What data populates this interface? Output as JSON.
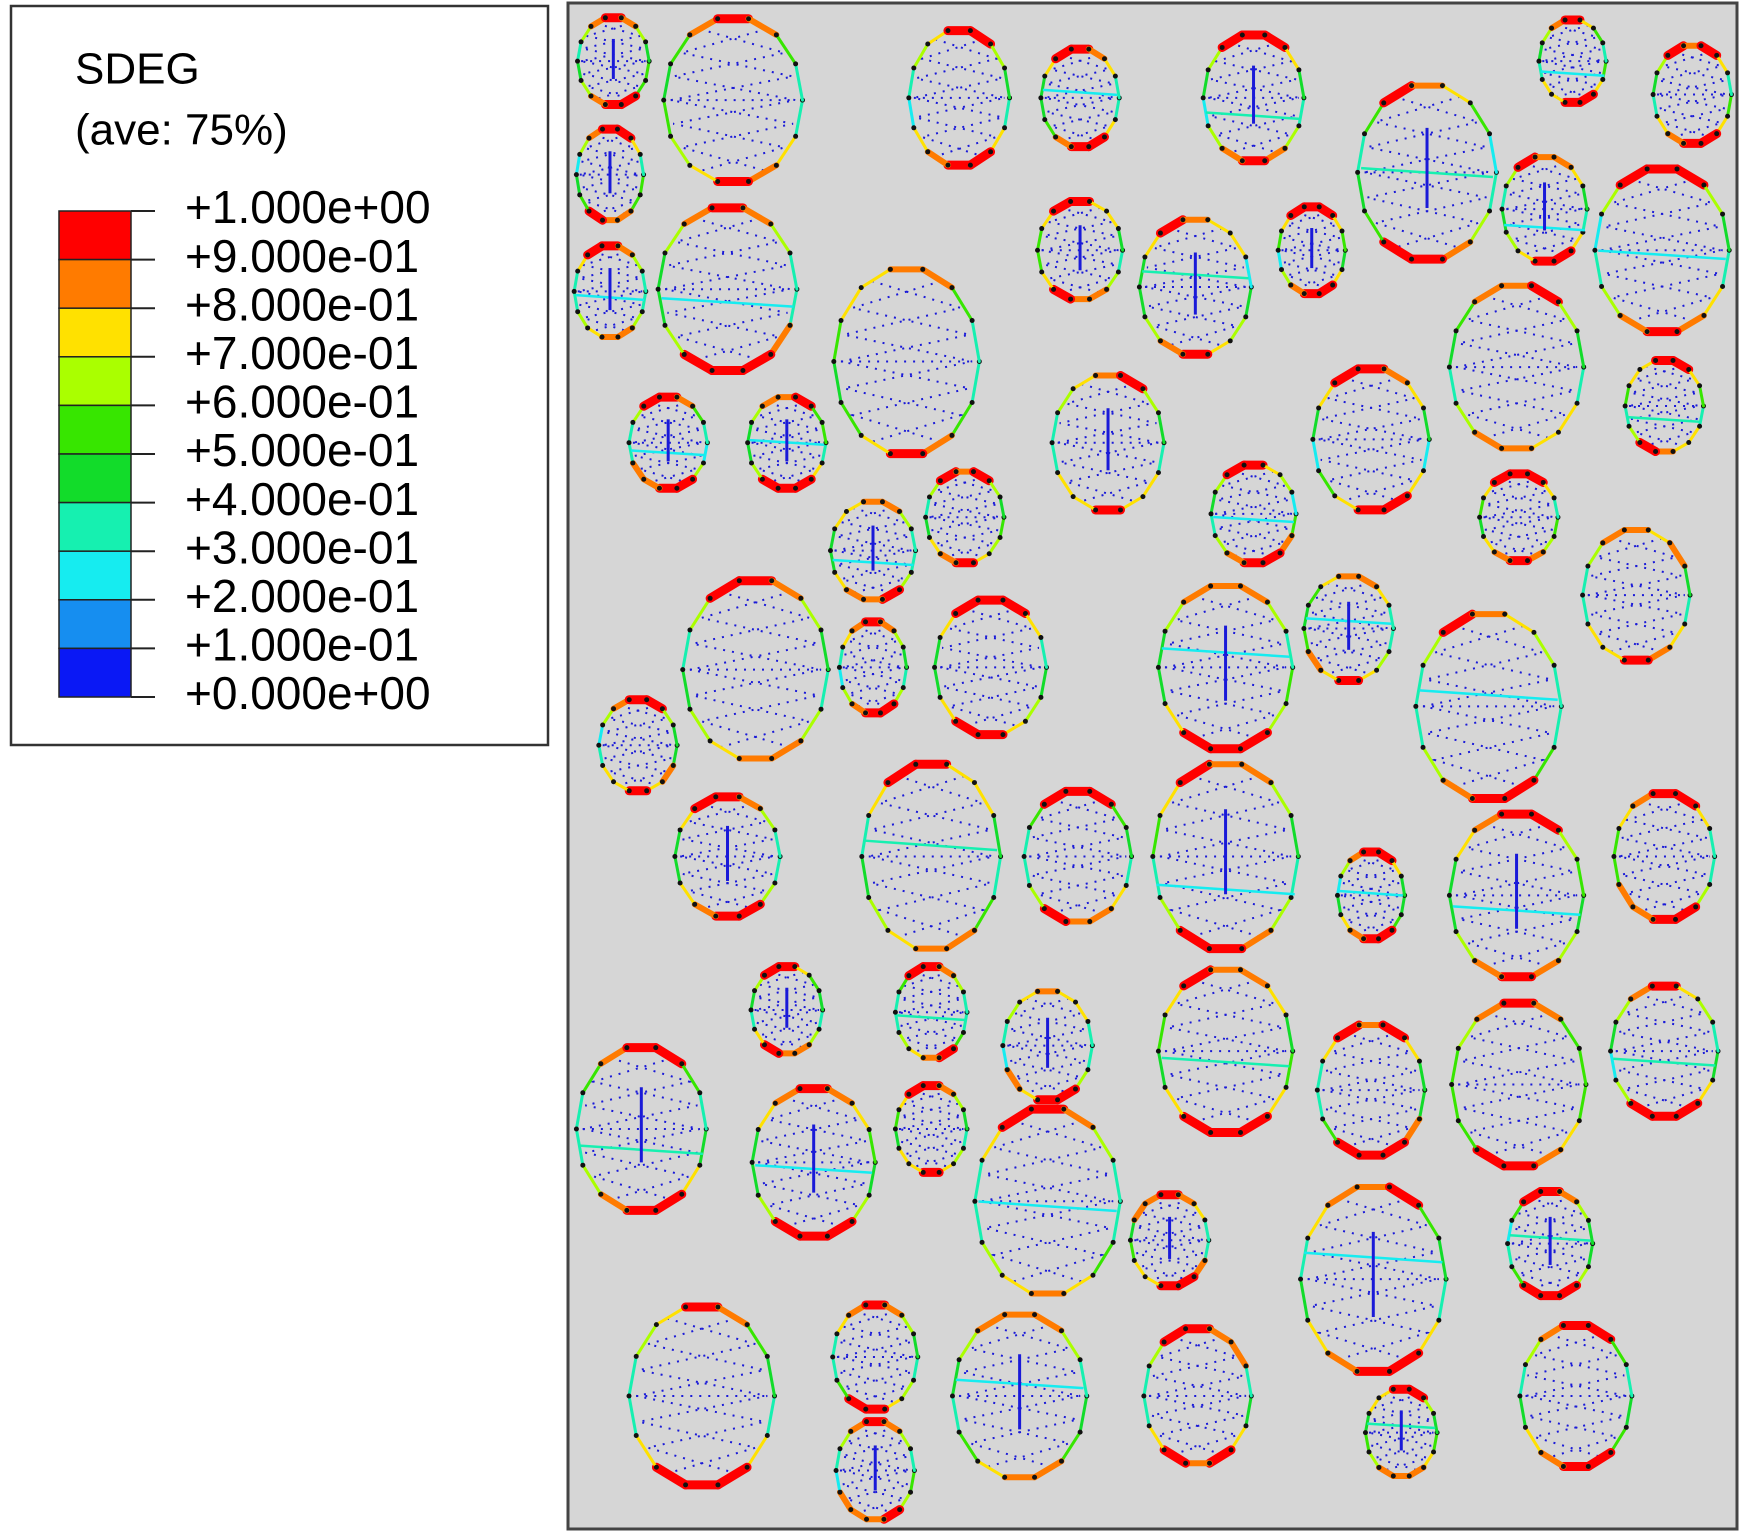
{
  "legend": {
    "title": "SDEG",
    "subtitle": "(ave: 75%)",
    "levels": [
      {
        "label": "+1.000e+00",
        "color": "#ff0000"
      },
      {
        "label": "+9.000e-01",
        "color": "#ff7b00"
      },
      {
        "label": "+8.000e-01",
        "color": "#ffe100"
      },
      {
        "label": "+7.000e-01",
        "color": "#aaff00"
      },
      {
        "label": "+6.000e-01",
        "color": "#37e600"
      },
      {
        "label": "+5.000e-01",
        "color": "#12dc2a"
      },
      {
        "label": "+4.000e-01",
        "color": "#16f0b0"
      },
      {
        "label": "+3.000e-01",
        "color": "#16ecf0"
      },
      {
        "label": "+2.000e-01",
        "color": "#168ef0"
      },
      {
        "label": "+1.000e-01",
        "color": "#0a18f5"
      },
      {
        "label": "+0.000e+00"
      }
    ]
  }
}
